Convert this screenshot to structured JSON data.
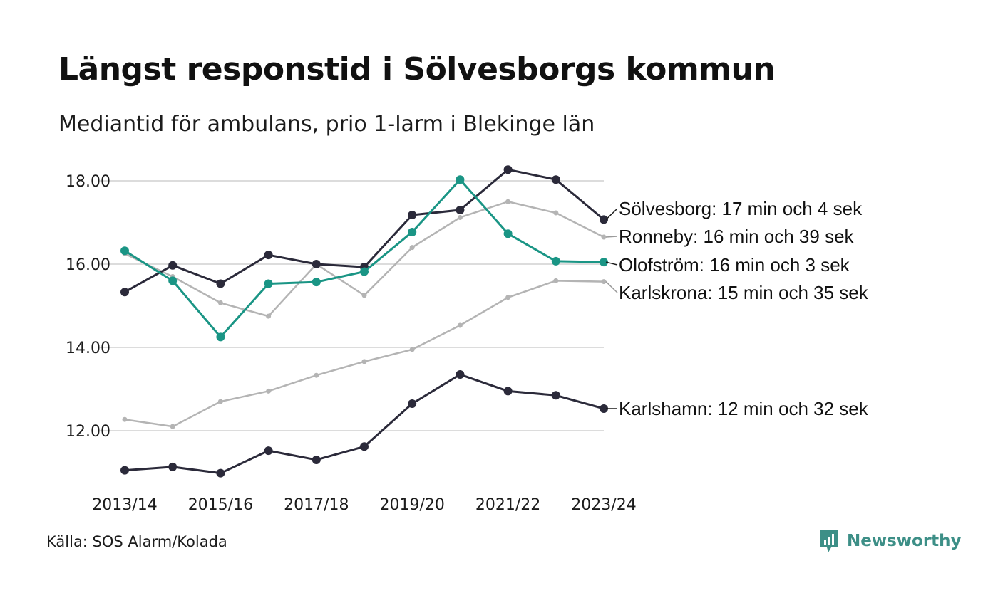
{
  "header": {
    "title": "Längst responstid i Sölvesborgs kommun",
    "subtitle": "Mediantid för ambulans, prio 1-larm i Blekinge län"
  },
  "footer": {
    "source": "Källa: SOS Alarm/Kolada",
    "brand": "Newsworthy"
  },
  "icons": {
    "brand_logo": "newsworthy-logo-icon"
  },
  "colors": {
    "highlight": "#1a9585",
    "dark": "#2b2a3a",
    "gray": "#b4b4b4",
    "grid": "#dcdcdc",
    "brand": "#3d8f87"
  },
  "chart_data": {
    "type": "line",
    "x": [
      "2013/14",
      "2014/15",
      "2015/16",
      "2016/17",
      "2017/18",
      "2018/19",
      "2019/20",
      "2020/21",
      "2021/22",
      "2022/23",
      "2023/24"
    ],
    "x_tick_labels": [
      "2013/14",
      "2015/16",
      "2017/18",
      "2019/20",
      "2021/22",
      "2023/24"
    ],
    "ylim": [
      10.8,
      18.6
    ],
    "y_ticks": [
      "12.00",
      "14.00",
      "16.00",
      "18.00"
    ],
    "y_tick_values": [
      12,
      14,
      16,
      18
    ],
    "grid": "horizontal",
    "legend": "direct labels at line ends (right)",
    "series": [
      {
        "name": "Karlskrona",
        "end_label": "Karlskrona: 15 min och 35 sek",
        "style": "gray",
        "values": [
          12.27,
          12.1,
          12.7,
          12.95,
          13.33,
          13.66,
          13.95,
          14.53,
          15.2,
          15.6,
          15.58
        ]
      },
      {
        "name": "Ronneby",
        "end_label": "Ronneby: 16 min och 39 sek",
        "style": "gray",
        "values": [
          16.25,
          15.7,
          15.07,
          14.75,
          16.0,
          15.25,
          16.4,
          17.12,
          17.5,
          17.23,
          16.65
        ]
      },
      {
        "name": "Karlshamn",
        "end_label": "Karlshamn: 12 min och 32 sek",
        "style": "dark",
        "values": [
          11.05,
          11.13,
          10.98,
          11.52,
          11.3,
          11.62,
          12.65,
          13.35,
          12.95,
          12.85,
          12.53
        ]
      },
      {
        "name": "Sölvesborg",
        "end_label": "Sölvesborg: 17 min och 4 sek",
        "style": "dark",
        "values": [
          15.33,
          15.97,
          15.53,
          16.22,
          16.0,
          15.93,
          17.18,
          17.3,
          18.27,
          18.03,
          17.07
        ]
      },
      {
        "name": "Olofström",
        "end_label": "Olofström: 16 min och 3 sek",
        "style": "highlight",
        "values": [
          16.32,
          15.6,
          14.25,
          15.53,
          15.57,
          15.82,
          16.77,
          18.03,
          16.73,
          16.07,
          16.05
        ]
      }
    ]
  }
}
